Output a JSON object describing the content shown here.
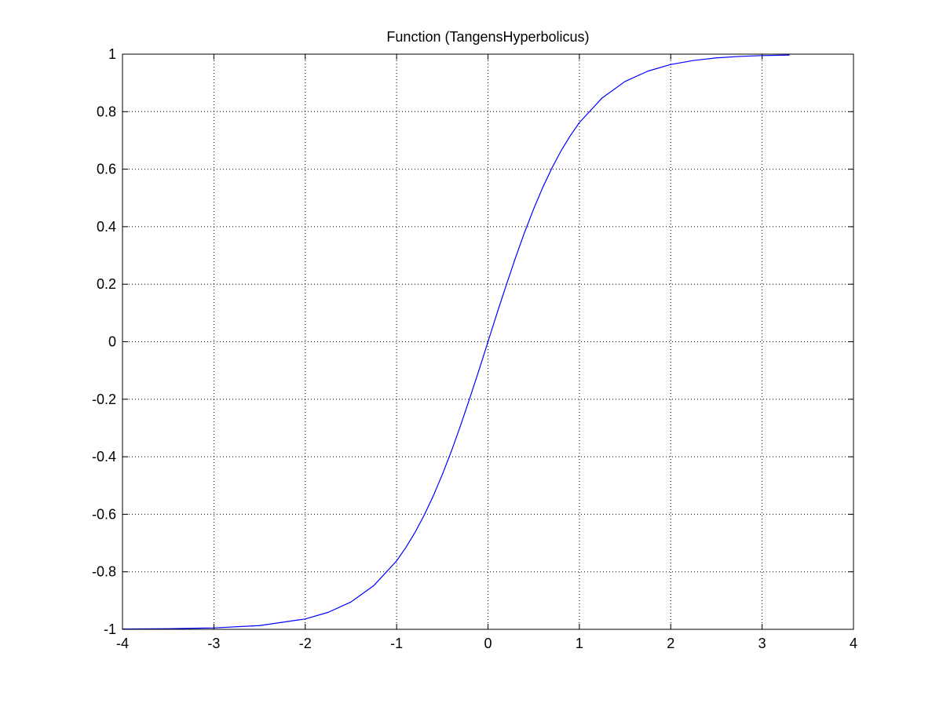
{
  "chart_data": {
    "type": "line",
    "title": "Function (TangensHyperbolicus)",
    "xlabel": "",
    "ylabel": "",
    "xlim": [
      -4,
      4
    ],
    "ylim": [
      -1,
      1
    ],
    "x_ticks": [
      -4,
      -3,
      -2,
      -1,
      0,
      1,
      2,
      3,
      4
    ],
    "x_tick_labels": [
      "-4",
      "-3",
      "-2",
      "-1",
      "0",
      "1",
      "2",
      "3",
      "4"
    ],
    "y_ticks": [
      -1,
      -0.8,
      -0.6,
      -0.4,
      -0.2,
      0,
      0.2,
      0.4,
      0.6,
      0.8,
      1
    ],
    "y_tick_labels": [
      "-1",
      "-0.8",
      "-0.6",
      "-0.4",
      "-0.2",
      "0",
      "0.2",
      "0.4",
      "0.6",
      "0.8",
      "1"
    ],
    "grid": true,
    "series": [
      {
        "color": "#0000ff",
        "x": [
          -4.0,
          -3.5,
          -3.0,
          -2.5,
          -2.0,
          -1.75,
          -1.5,
          -1.25,
          -1.0,
          -0.9,
          -0.8,
          -0.7,
          -0.6,
          -0.5,
          -0.4,
          -0.3,
          -0.2,
          -0.1,
          0.0,
          0.1,
          0.2,
          0.3,
          0.4,
          0.5,
          0.6,
          0.7,
          0.8,
          0.9,
          1.0,
          1.25,
          1.5,
          1.75,
          2.0,
          2.25,
          2.5,
          2.75,
          3.0,
          3.15,
          3.3
        ],
        "y": [
          -0.999,
          -0.998,
          -0.995,
          -0.987,
          -0.964,
          -0.941,
          -0.905,
          -0.848,
          -0.762,
          -0.716,
          -0.664,
          -0.604,
          -0.537,
          -0.462,
          -0.38,
          -0.291,
          -0.197,
          -0.1,
          0.0,
          0.1,
          0.197,
          0.291,
          0.38,
          0.462,
          0.537,
          0.604,
          0.664,
          0.716,
          0.762,
          0.848,
          0.905,
          0.941,
          0.964,
          0.978,
          0.987,
          0.992,
          0.995,
          0.996,
          0.997
        ]
      }
    ]
  }
}
